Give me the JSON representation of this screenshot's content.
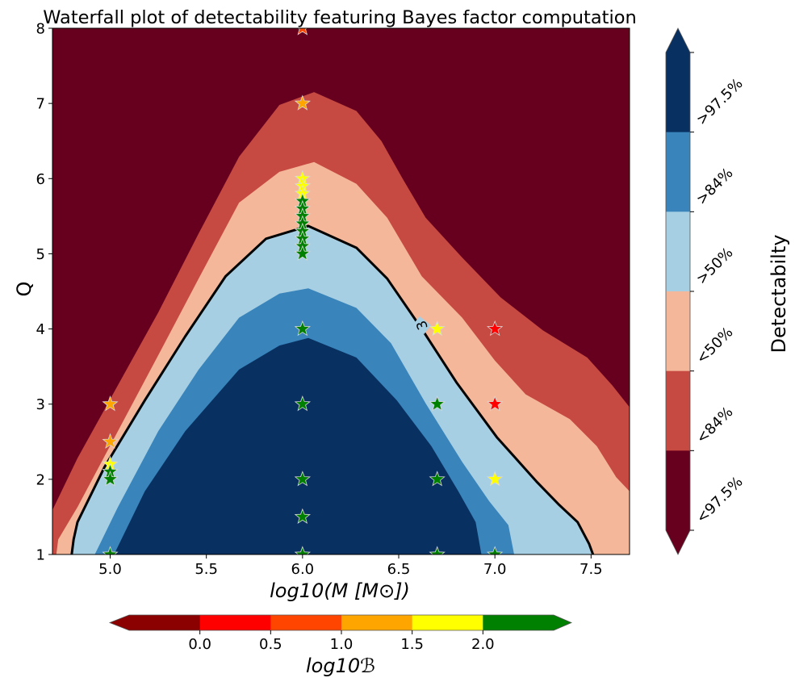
{
  "chart_data": {
    "type": "contour",
    "title": "Waterfall plot of detectability featuring Bayes factor computation",
    "xlabel": "log10(M [M⊙])",
    "ylabel": "Q",
    "xlim": [
      4.7,
      7.7
    ],
    "ylim": [
      1,
      8
    ],
    "xticks": [
      5.0,
      5.5,
      6.0,
      6.5,
      7.0,
      7.5
    ],
    "xtick_labels": [
      "5.0",
      "5.5",
      "6.0",
      "6.5",
      "7.0",
      "7.5"
    ],
    "yticks": [
      1,
      2,
      3,
      4,
      5,
      6,
      7,
      8
    ],
    "ytick_labels": [
      "1",
      "2",
      "3",
      "4",
      "5",
      "6",
      "7",
      "8"
    ],
    "grid": false,
    "detectability": {
      "label": "Detectabilty",
      "levels": [
        {
          "label": "<97.5%",
          "color": "#67001f"
        },
        {
          "label": "<84%",
          "color": "#c64a41"
        },
        {
          "label": "<50%",
          "color": "#f5b799"
        },
        {
          "label": ">50%",
          "color": "#a7cfe3"
        },
        {
          "label": ">84%",
          "color": "#3884bb"
        },
        {
          "label": ">97.5%",
          "color": "#083061"
        }
      ],
      "boundaries": [
        {
          "inner_level": "<84%",
          "points": [
            [
              4.7,
              1.59
            ],
            [
              4.83,
              2.28
            ],
            [
              5.04,
              3.25
            ],
            [
              5.25,
              4.22
            ],
            [
              5.46,
              5.27
            ],
            [
              5.67,
              6.29
            ],
            [
              5.88,
              6.98
            ],
            [
              6.06,
              7.15
            ],
            [
              6.28,
              6.9
            ],
            [
              6.41,
              6.5
            ],
            [
              6.52,
              6.0
            ],
            [
              6.64,
              5.48
            ],
            [
              6.83,
              4.95
            ],
            [
              7.03,
              4.42
            ],
            [
              7.25,
              3.98
            ],
            [
              7.48,
              3.62
            ],
            [
              7.61,
              3.25
            ],
            [
              7.7,
              2.96
            ]
          ]
        },
        {
          "inner_level": "<50%",
          "points": [
            [
              4.72,
              1.0
            ],
            [
              4.73,
              1.2
            ],
            [
              4.83,
              1.63
            ],
            [
              5.04,
              2.64
            ],
            [
              5.25,
              3.65
            ],
            [
              5.46,
              4.67
            ],
            [
              5.67,
              5.68
            ],
            [
              5.88,
              6.09
            ],
            [
              6.06,
              6.22
            ],
            [
              6.28,
              5.93
            ],
            [
              6.44,
              5.48
            ],
            [
              6.62,
              4.7
            ],
            [
              6.83,
              4.15
            ],
            [
              7.0,
              3.58
            ],
            [
              7.16,
              3.13
            ],
            [
              7.39,
              2.8
            ],
            [
              7.53,
              2.44
            ],
            [
              7.63,
              2.03
            ],
            [
              7.7,
              1.84
            ]
          ]
        },
        {
          "inner_level": ">50%",
          "points": [
            [
              4.8,
              1.0
            ],
            [
              4.81,
              1.2
            ],
            [
              4.83,
              1.43
            ],
            [
              4.97,
              2.16
            ],
            [
              5.18,
              3.05
            ],
            [
              5.39,
              3.9
            ],
            [
              5.6,
              4.7
            ],
            [
              5.81,
              5.2
            ],
            [
              6.03,
              5.37
            ],
            [
              6.28,
              5.08
            ],
            [
              6.44,
              4.67
            ],
            [
              6.62,
              4.0
            ],
            [
              6.8,
              3.29
            ],
            [
              7.01,
              2.56
            ],
            [
              7.22,
              1.96
            ],
            [
              7.33,
              1.67
            ],
            [
              7.43,
              1.43
            ],
            [
              7.49,
              1.14
            ],
            [
              7.51,
              1.0
            ]
          ]
        },
        {
          "inner_level": ">84%",
          "points": [
            [
              4.92,
              1.0
            ],
            [
              5.04,
              1.63
            ],
            [
              5.25,
              2.64
            ],
            [
              5.46,
              3.46
            ],
            [
              5.67,
              4.15
            ],
            [
              5.88,
              4.47
            ],
            [
              6.03,
              4.54
            ],
            [
              6.28,
              4.28
            ],
            [
              6.46,
              3.81
            ],
            [
              6.64,
              3.01
            ],
            [
              6.83,
              2.23
            ],
            [
              6.97,
              1.71
            ],
            [
              7.07,
              1.39
            ],
            [
              7.1,
              1.0
            ]
          ]
        },
        {
          "inner_level": ">97.5%",
          "points": [
            [
              5.02,
              1.0
            ],
            [
              5.18,
              1.84
            ],
            [
              5.39,
              2.64
            ],
            [
              5.67,
              3.46
            ],
            [
              5.88,
              3.78
            ],
            [
              6.03,
              3.88
            ],
            [
              6.28,
              3.62
            ],
            [
              6.49,
              3.05
            ],
            [
              6.67,
              2.44
            ],
            [
              6.81,
              1.84
            ],
            [
              6.9,
              1.43
            ],
            [
              6.93,
              1.0
            ]
          ]
        }
      ],
      "contour_line": {
        "level_label": "3",
        "label_at": [
          6.62,
          4.05
        ],
        "color": "#000000"
      }
    },
    "bayes_factor": {
      "label": "log10ℬ",
      "ticks": [
        0.0,
        0.5,
        1.0,
        1.5,
        2.0
      ],
      "tick_labels": [
        "0.0",
        "0.5",
        "1.0",
        "1.5",
        "2.0"
      ],
      "colors": [
        "#8b0000",
        "#ff0000",
        "#ff4500",
        "#ffa500",
        "#ffff00",
        "#008000"
      ],
      "extend": "both"
    },
    "points": [
      {
        "x": 5.0,
        "y": 3.0,
        "color": "#ffa500"
      },
      {
        "x": 5.0,
        "y": 2.5,
        "color": "#ffa500"
      },
      {
        "x": 5.0,
        "y": 2.2,
        "color": "#ffff00"
      },
      {
        "x": 5.0,
        "y": 2.1,
        "color": "#008000"
      },
      {
        "x": 5.0,
        "y": 2.0,
        "color": "#008000"
      },
      {
        "x": 5.0,
        "y": 1.0,
        "color": "#008000"
      },
      {
        "x": 6.0,
        "y": 8.0,
        "color": "#ff4500"
      },
      {
        "x": 6.0,
        "y": 7.0,
        "color": "#ffa500"
      },
      {
        "x": 6.0,
        "y": 6.0,
        "color": "#ffff00"
      },
      {
        "x": 6.0,
        "y": 5.9,
        "color": "#ffff00"
      },
      {
        "x": 6.0,
        "y": 5.8,
        "color": "#ffff00"
      },
      {
        "x": 6.0,
        "y": 5.7,
        "color": "#008000"
      },
      {
        "x": 6.0,
        "y": 5.6,
        "color": "#008000"
      },
      {
        "x": 6.0,
        "y": 5.5,
        "color": "#008000"
      },
      {
        "x": 6.0,
        "y": 5.4,
        "color": "#008000"
      },
      {
        "x": 6.0,
        "y": 5.3,
        "color": "#008000"
      },
      {
        "x": 6.0,
        "y": 5.2,
        "color": "#008000"
      },
      {
        "x": 6.0,
        "y": 5.1,
        "color": "#008000"
      },
      {
        "x": 6.0,
        "y": 5.0,
        "color": "#008000"
      },
      {
        "x": 6.0,
        "y": 4.0,
        "color": "#008000"
      },
      {
        "x": 6.0,
        "y": 3.0,
        "color": "#008000"
      },
      {
        "x": 6.0,
        "y": 2.0,
        "color": "#008000"
      },
      {
        "x": 6.0,
        "y": 1.5,
        "color": "#008000"
      },
      {
        "x": 6.0,
        "y": 1.0,
        "color": "#008000"
      },
      {
        "x": 6.7,
        "y": 4.0,
        "color": "#ffff00"
      },
      {
        "x": 6.7,
        "y": 3.0,
        "color": "#008000"
      },
      {
        "x": 6.7,
        "y": 2.0,
        "color": "#008000"
      },
      {
        "x": 6.7,
        "y": 1.0,
        "color": "#008000"
      },
      {
        "x": 7.0,
        "y": 4.0,
        "color": "#ff0000"
      },
      {
        "x": 7.0,
        "y": 3.0,
        "color": "#ff0000"
      },
      {
        "x": 7.0,
        "y": 2.0,
        "color": "#ffff00"
      },
      {
        "x": 7.0,
        "y": 1.0,
        "color": "#008000"
      }
    ]
  }
}
